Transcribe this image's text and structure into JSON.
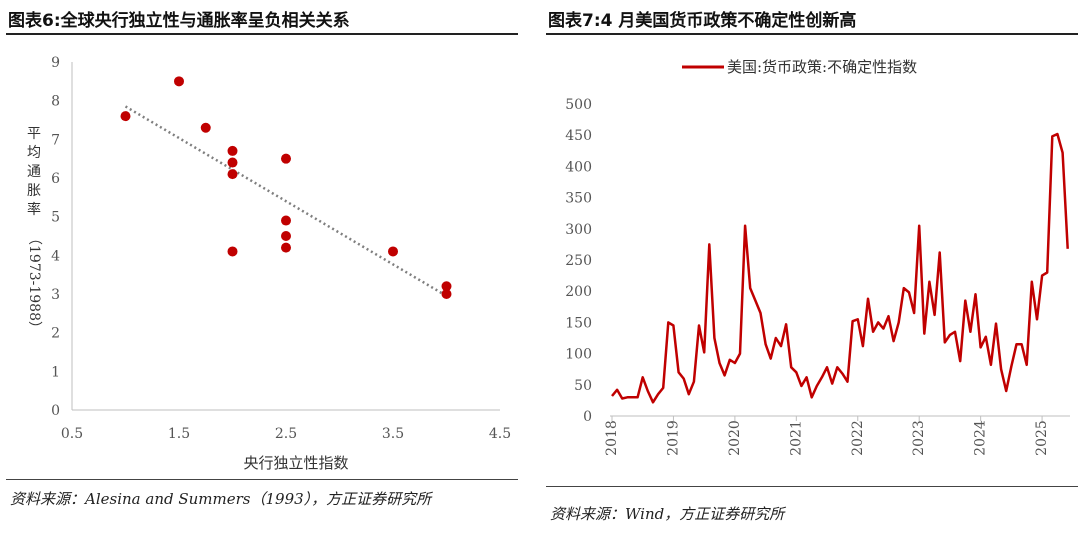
{
  "left": {
    "title": "图表6:全球央行独立性与通胀率呈负相关关系",
    "source": "资料来源：Alesina and Summers（1993），方正证券研究所",
    "chart_data": {
      "type": "scatter",
      "xlabel": "央行独立性指数",
      "ylabel": "平均通胀率（1973-1988）",
      "xlim": [
        0.5,
        4.5
      ],
      "ylim": [
        0,
        9
      ],
      "xticks": [
        "0.5",
        "1.5",
        "2.5",
        "3.5",
        "4.5"
      ],
      "yticks": [
        "0",
        "1",
        "2",
        "3",
        "4",
        "5",
        "6",
        "7",
        "8",
        "9"
      ],
      "grid": false,
      "marker_color": "#C00000",
      "trend_color": "#7F7F7F",
      "trendline": {
        "x": [
          1.0,
          4.0
        ],
        "y": [
          7.85,
          2.95
        ]
      },
      "points": [
        {
          "x": 1.0,
          "y": 7.6
        },
        {
          "x": 1.5,
          "y": 8.5
        },
        {
          "x": 1.75,
          "y": 7.3
        },
        {
          "x": 2.0,
          "y": 6.7
        },
        {
          "x": 2.0,
          "y": 6.4
        },
        {
          "x": 2.0,
          "y": 6.1
        },
        {
          "x": 2.0,
          "y": 4.1
        },
        {
          "x": 2.5,
          "y": 6.5
        },
        {
          "x": 2.5,
          "y": 4.9
        },
        {
          "x": 2.5,
          "y": 4.5
        },
        {
          "x": 2.5,
          "y": 4.2
        },
        {
          "x": 3.5,
          "y": 4.1
        },
        {
          "x": 4.0,
          "y": 3.2
        },
        {
          "x": 4.0,
          "y": 3.0
        }
      ]
    }
  },
  "right": {
    "title": "图表7:4 月美国货币政策不确定性创新高",
    "source": "资料来源：Wind，方正证券研究所",
    "chart_data": {
      "type": "line",
      "series": [
        {
          "name": "美国:货币政策:不确定性指数",
          "color": "#C00000",
          "start": "2018-01",
          "values": [
            32,
            42,
            28,
            30,
            30,
            30,
            62,
            40,
            22,
            35,
            45,
            150,
            145,
            70,
            60,
            35,
            55,
            145,
            102,
            275,
            125,
            85,
            65,
            90,
            85,
            100,
            305,
            205,
            185,
            165,
            115,
            92,
            125,
            112,
            147,
            78,
            70,
            48,
            62,
            30,
            48,
            62,
            78,
            52,
            78,
            68,
            55,
            152,
            155,
            112,
            188,
            135,
            150,
            140,
            160,
            120,
            150,
            205,
            198,
            165,
            305,
            132,
            215,
            162,
            262,
            118,
            130,
            135,
            88,
            185,
            135,
            195,
            110,
            127,
            82,
            148,
            75,
            40,
            80,
            115,
            115,
            82,
            215,
            155,
            225,
            230,
            448,
            452,
            422,
            268
          ]
        }
      ],
      "xticks": [
        "2018",
        "2019",
        "2020",
        "2021",
        "2022",
        "2023",
        "2024",
        "2025"
      ],
      "yticks": [
        "0",
        "50",
        "100",
        "150",
        "200",
        "250",
        "300",
        "350",
        "400",
        "450",
        "500"
      ],
      "ylim": [
        0,
        500
      ],
      "grid": false,
      "legend": "top-center"
    }
  }
}
